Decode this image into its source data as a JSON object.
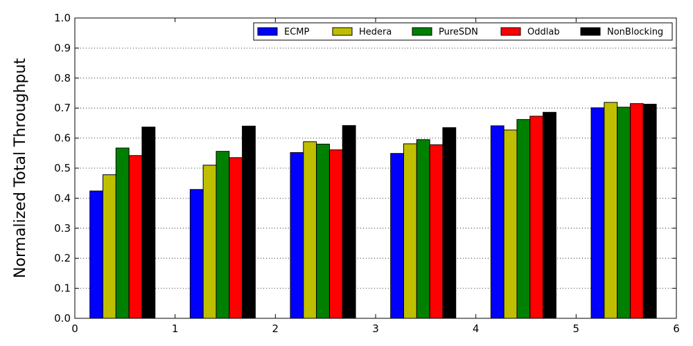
{
  "chart_data": {
    "type": "bar",
    "title": "",
    "xlabel": "",
    "ylabel": "Normalized Total Throughput",
    "xlim": [
      0,
      6
    ],
    "ylim": [
      0,
      1.0
    ],
    "x_ticks": [
      "0",
      "1",
      "2",
      "3",
      "4",
      "5",
      "6"
    ],
    "y_ticks": [
      "0.0",
      "0.1",
      "0.2",
      "0.3",
      "0.4",
      "0.5",
      "0.6",
      "0.7",
      "0.8",
      "0.9",
      "1.0"
    ],
    "grid": "horizontal dotted",
    "legend_position": "top-right",
    "group_positions": [
      0,
      1,
      2,
      3,
      4,
      5
    ],
    "series": [
      {
        "name": "ECMP",
        "color": "#0000ff",
        "values": [
          0.424,
          0.429,
          0.552,
          0.549,
          0.641,
          0.701
        ]
      },
      {
        "name": "Hedera",
        "color": "#bfbf00",
        "values": [
          0.478,
          0.51,
          0.588,
          0.581,
          0.627,
          0.719
        ]
      },
      {
        "name": "PureSDN",
        "color": "#008000",
        "values": [
          0.567,
          0.556,
          0.58,
          0.595,
          0.662,
          0.703
        ]
      },
      {
        "name": "Oddlab",
        "color": "#ff0000",
        "values": [
          0.542,
          0.535,
          0.561,
          0.578,
          0.673,
          0.715
        ]
      },
      {
        "name": "NonBlocking",
        "color": "#000000",
        "values": [
          0.637,
          0.64,
          0.642,
          0.635,
          0.686,
          0.713
        ]
      }
    ]
  }
}
